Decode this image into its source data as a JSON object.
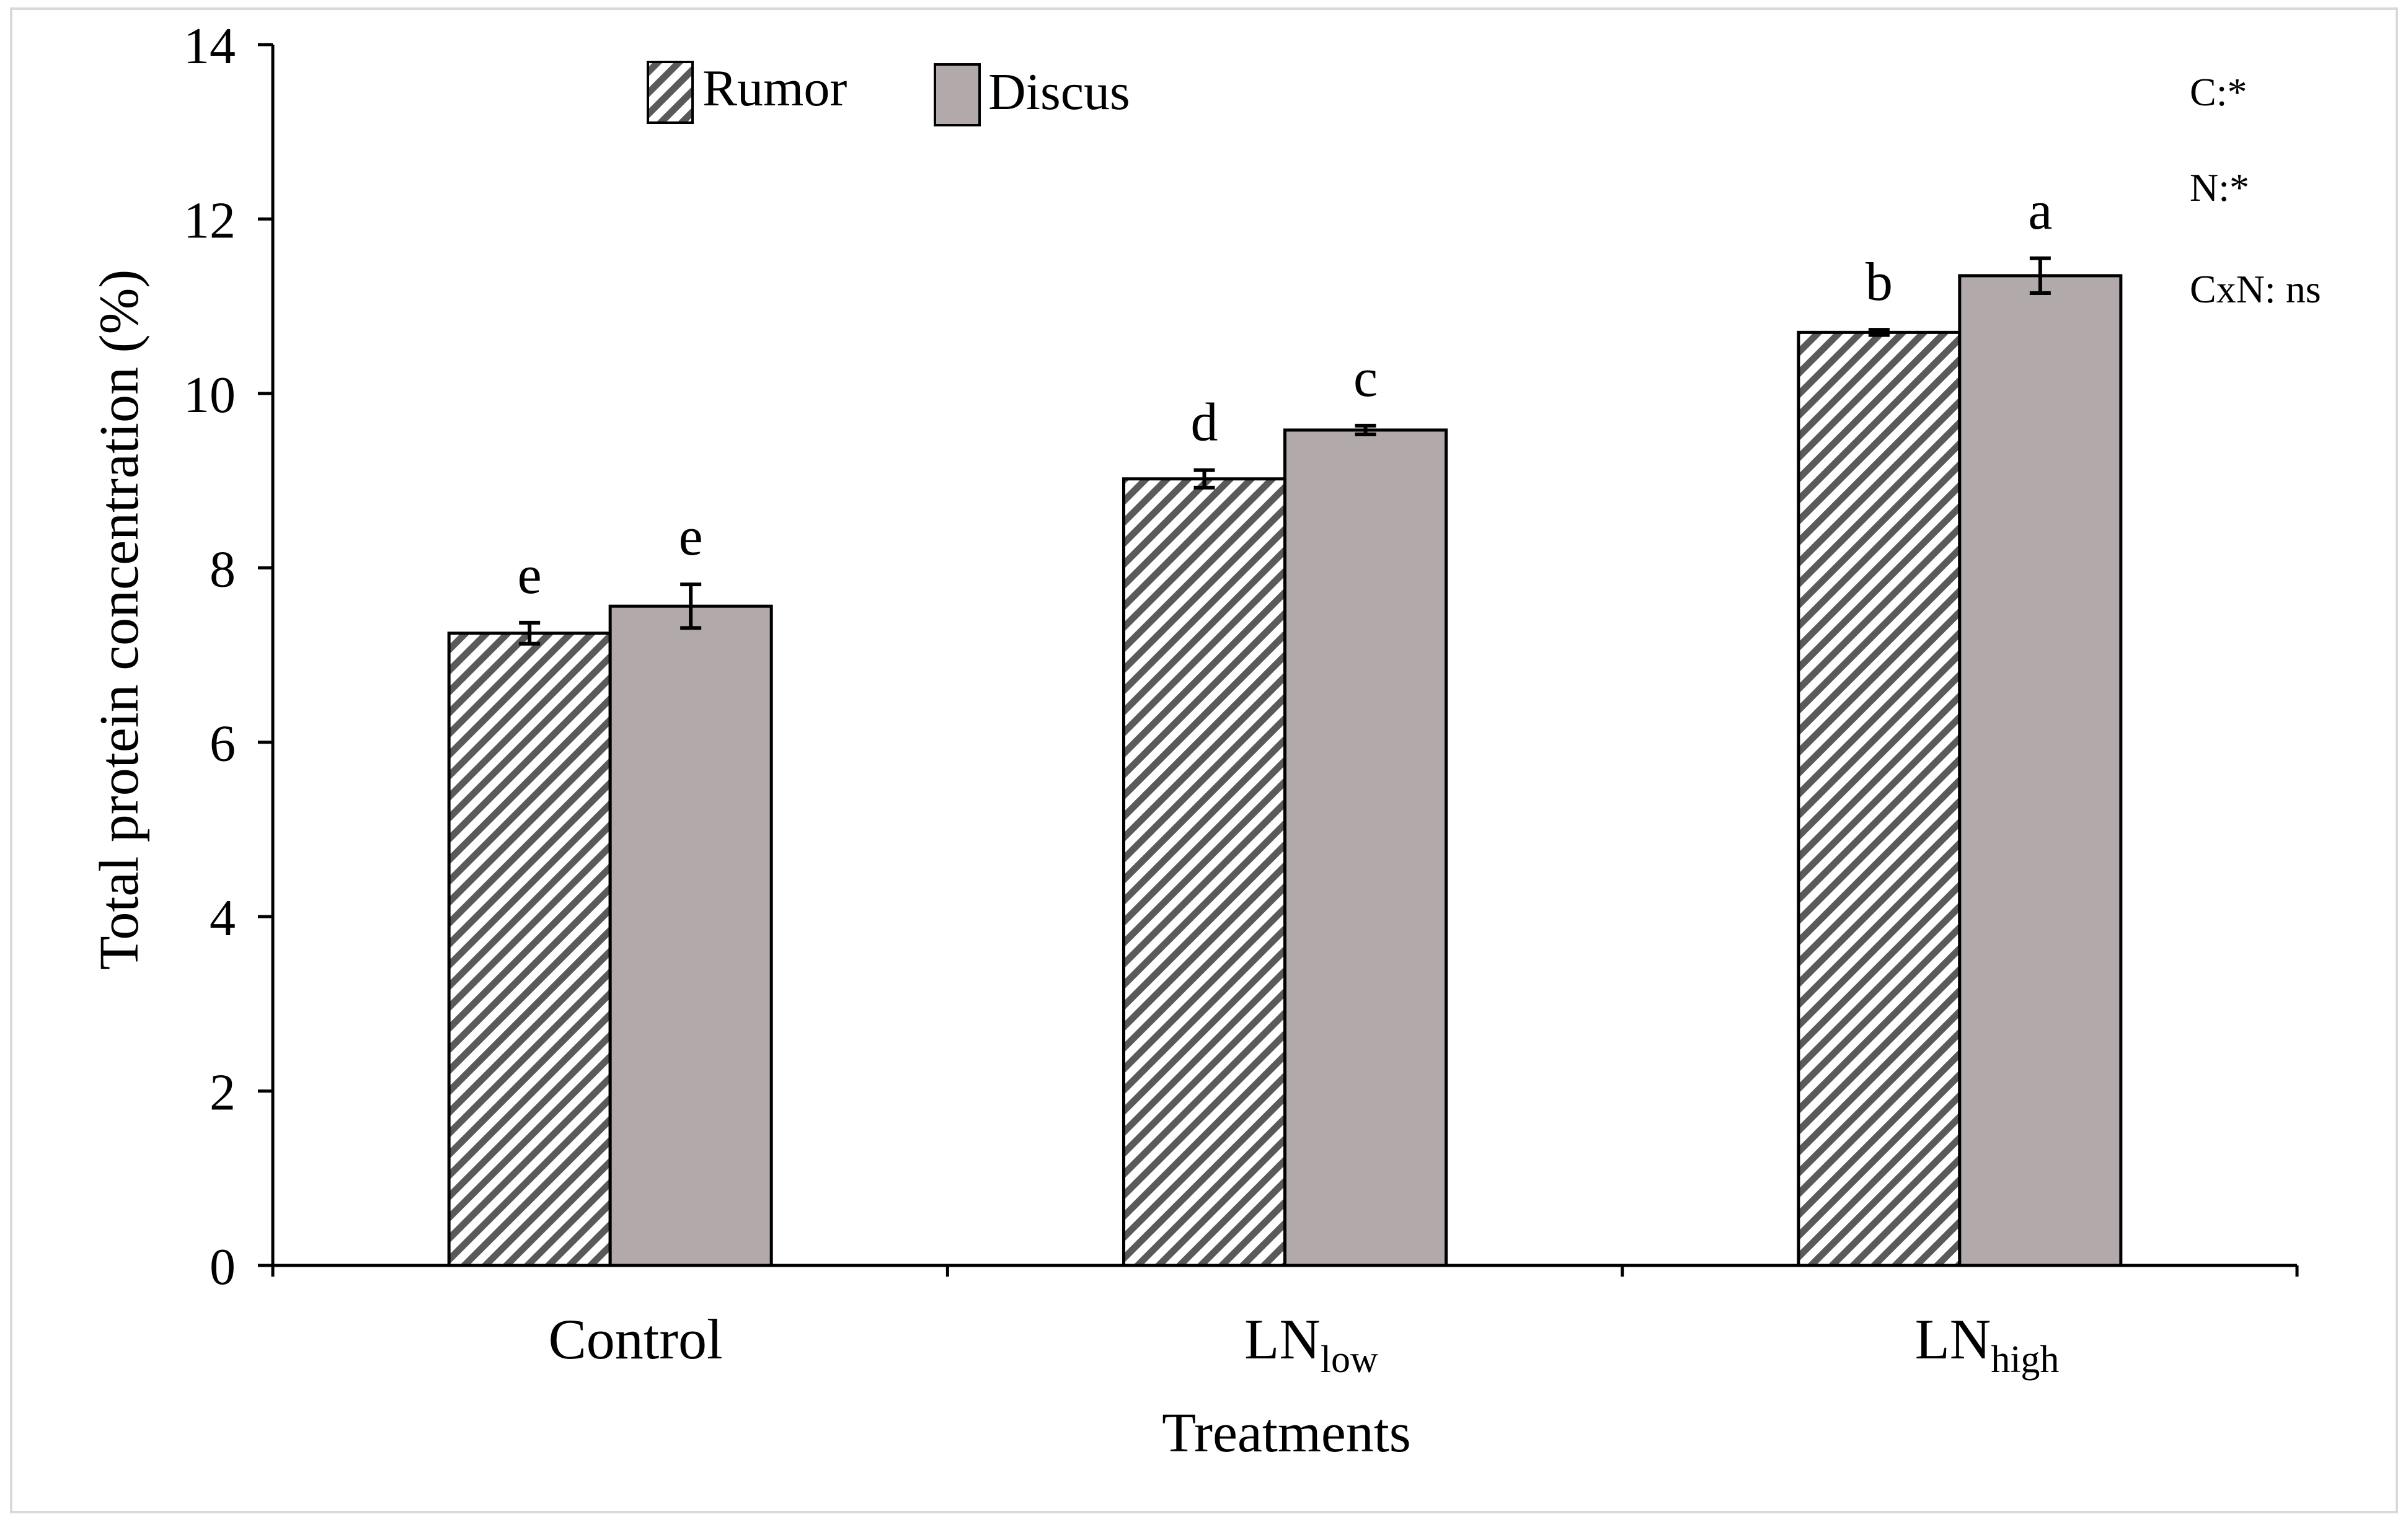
{
  "chart_data": {
    "type": "bar",
    "categories": [
      "Control",
      "LN",
      "LN"
    ],
    "category_subscripts": [
      "",
      "low",
      "high"
    ],
    "series": [
      {
        "name": "Rumor",
        "pattern": "hatched",
        "values": [
          7.25,
          9.02,
          10.7
        ],
        "errors": [
          0.12,
          0.1,
          0.03
        ],
        "letters": [
          "e",
          "d",
          "b"
        ]
      },
      {
        "name": "Discus",
        "pattern": "solid",
        "values": [
          7.56,
          9.58,
          11.35
        ],
        "errors": [
          0.25,
          0.05,
          0.2
        ],
        "letters": [
          "e",
          "c",
          "a"
        ]
      }
    ],
    "xlabel": "Treatments",
    "ylabel": "Total protein concentration (%)",
    "ylim": [
      0,
      14
    ],
    "yticks": [
      "0",
      "2",
      "4",
      "6",
      "8",
      "10",
      "12",
      "14"
    ],
    "annotations": [
      "C:*",
      "N:*",
      "CxN: ns"
    ],
    "legend_position": "top-left"
  },
  "colors": {
    "discus_fill": "#b2aaaa",
    "hatch_stripe": "#5a5a5a",
    "axis": "#000000",
    "border": "#d9d9d9"
  }
}
